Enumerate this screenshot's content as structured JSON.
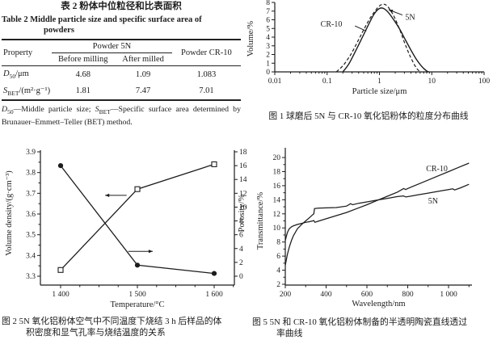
{
  "page": {
    "background": "#ffffff",
    "ink": "#1c1c1c"
  },
  "table": {
    "caption_zh": "表 2  粉体中位粒径和比表面积",
    "caption_en_line1": "Table 2   Middle particle size and specific surface area of",
    "caption_en_line2": "powders",
    "header": {
      "property": "Property",
      "group_powder_5n": "Powder 5N",
      "before_milling": "Before milling",
      "after_milled": "After milled",
      "powder_cr10": "Powder CR-10"
    },
    "rows": [
      {
        "symbol": "D",
        "sub": "50",
        "unit": "/μm",
        "before": "4.68",
        "after": "1.09",
        "cr10": "1.083"
      },
      {
        "symbol": "S",
        "sub": "BET",
        "unit": "/(m²·g⁻¹)",
        "before": "1.81",
        "after": "7.47",
        "cr10": "7.01"
      }
    ],
    "footnote": {
      "d_symbol": "D",
      "d_sub": "50",
      "d_text": "—Middle particle size; ",
      "s_symbol": "S",
      "s_sub": "BET",
      "s_text": "—Specific surface area determined by Brunauer–Emmett–Teller (BET) method."
    }
  },
  "chart_data": [
    {
      "id": "fig1",
      "type": "line",
      "xscale": "log",
      "xlabel": "Particle size/μm",
      "ylabel": "Volume/%",
      "xlim": [
        0.01,
        100
      ],
      "ylim": [
        0,
        8
      ],
      "xticks": [
        0.01,
        0.1,
        1,
        10,
        100
      ],
      "xtick_labels": [
        "0.01",
        "0.1",
        "1",
        "10",
        "100"
      ],
      "yticks": [
        0,
        1,
        2,
        3,
        4,
        5,
        6,
        7,
        8
      ],
      "grid": false,
      "series": [
        {
          "name": "CR-10",
          "line": "solid",
          "x": [
            0.2,
            0.25,
            0.3,
            0.4,
            0.5,
            0.65,
            0.8,
            1.0,
            1.2,
            1.5,
            2,
            2.5,
            3,
            4,
            5,
            6,
            7,
            8,
            8.7
          ],
          "y": [
            0,
            0.75,
            1.6,
            3.1,
            4.3,
            5.7,
            6.7,
            7.3,
            7.3,
            6.8,
            5.75,
            4.8,
            3.9,
            2.5,
            1.5,
            0.85,
            0.4,
            0.1,
            0
          ]
        },
        {
          "name": "5N",
          "line": "dashed",
          "x": [
            0.15,
            0.2,
            0.25,
            0.3,
            0.4,
            0.5,
            0.65,
            0.8,
            1.0,
            1.2,
            1.4,
            1.7,
            2,
            2.5,
            3,
            3.5,
            4,
            5,
            6
          ],
          "y": [
            0,
            0.7,
            1.5,
            2.25,
            3.7,
            4.85,
            6.1,
            6.9,
            7.6,
            7.8,
            7.6,
            6.9,
            6.1,
            4.7,
            3.4,
            2.4,
            1.6,
            0.5,
            0
          ]
        }
      ],
      "annotations": [
        {
          "text": "CR-10",
          "x": 0.075,
          "y": 5.5,
          "leader": {
            "x1": 0.34,
            "y1": 5.3,
            "x2": 0.56,
            "y2": 4.7,
            "arrow": false
          }
        },
        {
          "text": "5N",
          "x": 3.1,
          "y": 6.3,
          "leader": {
            "x1": 2.75,
            "y1": 6.55,
            "x2": 1.5,
            "y2": 7.15,
            "arrow": true
          }
        }
      ],
      "caption": "图 1  球磨后 5N 与 CR-10 氧化铝粉体的粒度分布曲线"
    },
    {
      "id": "fig2",
      "type": "line-dual-axis",
      "xlabel": "Temperature/°C",
      "ylabel_left": "Volume density/(g·cm⁻³)",
      "ylabel_right": "Porosity/%",
      "xticks": [
        1400,
        1500,
        1600
      ],
      "xtick_labels": [
        "1 400",
        "1 500",
        "1 600"
      ],
      "xticks_minor": [
        1425,
        1450,
        1475,
        1525,
        1550,
        1575,
        1625
      ],
      "yticks_left": [
        3.3,
        3.4,
        3.5,
        3.6,
        3.7,
        3.8,
        3.9
      ],
      "ytick_labels_left": [
        "3.3",
        "3.4",
        "3.5",
        "3.6",
        "3.7",
        "3.8",
        "3.9"
      ],
      "yticks_left_minor": [
        3.35,
        3.45,
        3.55,
        3.65,
        3.75,
        3.85
      ],
      "ylim_left": [
        3.3,
        3.9
      ],
      "yticks_right": [
        0,
        2,
        4,
        6,
        8,
        10,
        12,
        14,
        16,
        18
      ],
      "ylim_right": [
        0,
        18
      ],
      "grid": false,
      "series": [
        {
          "name": "Volume density",
          "axis": "left",
          "marker": "open-square",
          "x": [
            1400,
            1500,
            1600
          ],
          "y": [
            3.33,
            3.72,
            3.84
          ]
        },
        {
          "name": "Porosity",
          "axis": "right",
          "marker": "filled-circle",
          "x": [
            1400,
            1500,
            1600
          ],
          "y": [
            16.0,
            1.6,
            0.4
          ]
        }
      ],
      "axis_arrows": [
        {
          "points_to": "left-axis",
          "x1": 1486,
          "y1": 3.69,
          "x2": 1458,
          "y2": 3.69
        },
        {
          "points_to": "right-axis",
          "x1": 1488,
          "y1": 3.42,
          "x2": 1520,
          "y2": 3.42
        }
      ],
      "caption_line1": "图 2  5N 氧化铝粉体空气中不同温度下烧结 3 h 后样品的体",
      "caption_line2": "积密度和显气孔率与烧结温度的关系"
    },
    {
      "id": "fig5",
      "type": "line",
      "xlabel": "Wavelength/nm",
      "ylabel": "Transmittance/%",
      "xlim": [
        200,
        1115
      ],
      "ylim": [
        2,
        20
      ],
      "xticks": [
        200,
        400,
        600,
        800,
        1000
      ],
      "xtick_labels": [
        "200",
        "400",
        "600",
        "800",
        "1 000"
      ],
      "xticks_minor": [
        300,
        500,
        700,
        900,
        1100
      ],
      "yticks": [
        2,
        4,
        6,
        8,
        10,
        12,
        14,
        16,
        18,
        20
      ],
      "yticks_minor": [
        3,
        5,
        7,
        9,
        11,
        13,
        15,
        17,
        19
      ],
      "grid": false,
      "series": [
        {
          "name": "CR-10",
          "line": "solid",
          "x": [
            200,
            205,
            210,
            215,
            220,
            230,
            240,
            260,
            280,
            300,
            320,
            335,
            340,
            345,
            360,
            400,
            450,
            500,
            550,
            600,
            650,
            700,
            750,
            780,
            790,
            800,
            850,
            900,
            950,
            1000,
            1050,
            1100
          ],
          "y": [
            8.2,
            8.8,
            9.3,
            9.65,
            9.9,
            10.15,
            10.3,
            10.5,
            10.65,
            10.8,
            10.9,
            11.0,
            11.05,
            10.8,
            10.95,
            11.3,
            11.75,
            12.2,
            12.75,
            13.3,
            13.9,
            14.5,
            15.1,
            15.6,
            15.45,
            15.6,
            16.2,
            16.8,
            17.4,
            18.0,
            18.6,
            19.2
          ]
        },
        {
          "name": "5N",
          "line": "solid",
          "x": [
            200,
            210,
            220,
            230,
            240,
            260,
            280,
            300,
            320,
            335,
            340,
            343,
            360,
            400,
            450,
            500,
            520,
            530,
            560,
            600,
            650,
            700,
            750,
            780,
            790,
            820,
            850,
            900,
            950,
            1000,
            1020,
            1030,
            1060,
            1100
          ],
          "y": [
            4.7,
            6.2,
            7.3,
            8.2,
            8.9,
            9.9,
            10.5,
            11.0,
            11.5,
            11.9,
            12.0,
            12.75,
            12.8,
            12.85,
            12.9,
            13.1,
            13.45,
            13.3,
            13.5,
            13.7,
            13.95,
            14.2,
            14.45,
            14.55,
            14.4,
            14.55,
            14.7,
            14.95,
            15.2,
            15.45,
            15.55,
            15.4,
            15.7,
            16.2
          ]
        }
      ],
      "annotations": [
        {
          "text": "CR-10",
          "x": 890,
          "y": 18.4
        },
        {
          "text": "5N",
          "x": 900,
          "y": 13.8
        }
      ],
      "caption_line1": "图 5  5N 和 CR-10 氧化铝粉体制备的半透明陶瓷直线透过",
      "caption_line2": "率曲线"
    }
  ]
}
